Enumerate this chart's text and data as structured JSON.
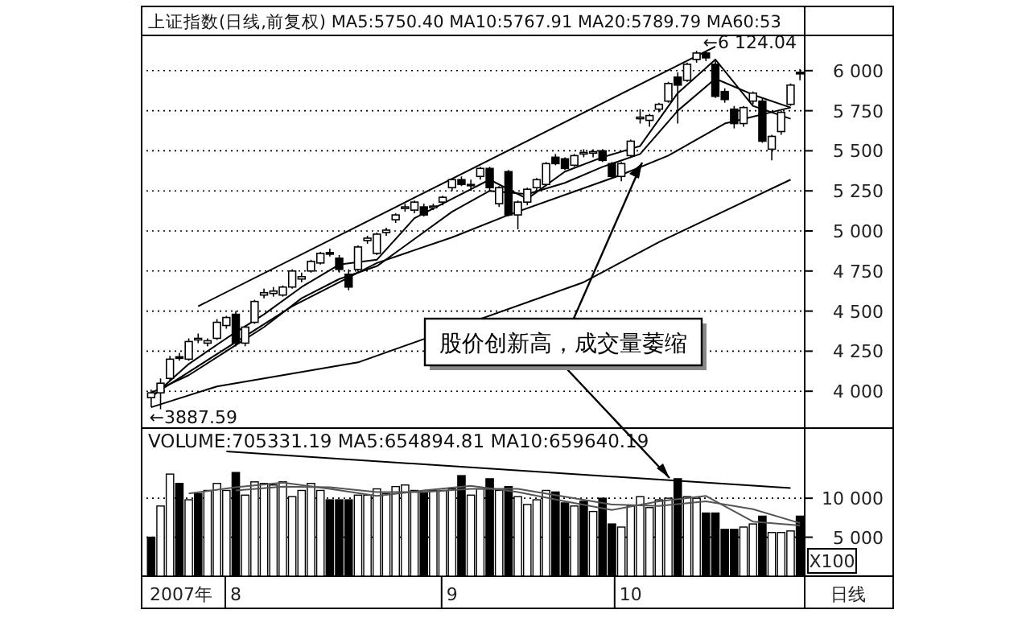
{
  "chart_data": [
    {
      "type": "candlestick",
      "title": "上证指数(日线,前复权) MA5:5750.40 MA10:5767.91 MA20:5789.79 MA60:53",
      "categories": [
        null,
        null,
        null,
        null,
        null,
        null,
        null,
        null,
        null,
        null,
        null,
        null,
        null,
        null,
        null,
        null,
        null,
        null,
        null,
        null,
        null,
        null,
        null,
        null,
        null,
        null,
        null,
        null,
        null,
        null,
        null,
        null,
        null,
        null,
        null,
        null,
        null,
        null,
        null,
        null,
        null,
        null,
        null,
        null,
        null,
        null,
        null,
        null,
        null,
        null,
        null,
        null,
        null,
        null,
        null,
        null,
        null,
        null,
        null,
        null,
        null,
        null,
        null,
        null,
        null,
        null,
        null,
        null,
        null,
        null
      ],
      "color": "#000000",
      "ohlc": [
        [
          3960,
          4010,
          3900,
          3990
        ],
        [
          3990,
          4080,
          3887.59,
          4050
        ],
        [
          4080,
          4220,
          4060,
          4200
        ],
        [
          4215,
          4240,
          4190,
          4205
        ],
        [
          4200,
          4330,
          4190,
          4310
        ],
        [
          4320,
          4360,
          4300,
          4330
        ],
        [
          4300,
          4330,
          4280,
          4315
        ],
        [
          4330,
          4450,
          4320,
          4430
        ],
        [
          4410,
          4470,
          4390,
          4460
        ],
        [
          4480,
          4500,
          4280,
          4300
        ],
        [
          4300,
          4410,
          4280,
          4400
        ],
        [
          4430,
          4570,
          4420,
          4560
        ],
        [
          4600,
          4640,
          4580,
          4615
        ],
        [
          4610,
          4650,
          4590,
          4625
        ],
        [
          4600,
          4660,
          4590,
          4650
        ],
        [
          4650,
          4760,
          4640,
          4750
        ],
        [
          4700,
          4740,
          4680,
          4715
        ],
        [
          4750,
          4820,
          4740,
          4810
        ],
        [
          4800,
          4870,
          4790,
          4860
        ],
        [
          4865,
          4890,
          4840,
          4855
        ],
        [
          4830,
          4850,
          4740,
          4760
        ],
        [
          4730,
          4760,
          4630,
          4650
        ],
        [
          4760,
          4910,
          4740,
          4900
        ],
        [
          4940,
          4970,
          4920,
          4955
        ],
        [
          4860,
          4990,
          4850,
          4980
        ],
        [
          4990,
          5020,
          4970,
          5005
        ],
        [
          5070,
          5110,
          5050,
          5100
        ],
        [
          5140,
          5170,
          5120,
          5150
        ],
        [
          5130,
          5190,
          5110,
          5180
        ],
        [
          5150,
          5170,
          5090,
          5100
        ],
        [
          5145,
          5170,
          5130,
          5155
        ],
        [
          5180,
          5220,
          5160,
          5210
        ],
        [
          5270,
          5330,
          5250,
          5320
        ],
        [
          5320,
          5340,
          5280,
          5290
        ],
        [
          5285,
          5320,
          5250,
          5290
        ],
        [
          5340,
          5400,
          5320,
          5390
        ],
        [
          5390,
          5400,
          5250,
          5270
        ],
        [
          5170,
          5280,
          5150,
          5270
        ],
        [
          5370,
          5380,
          5090,
          5100
        ],
        [
          5100,
          5190,
          5010,
          5180
        ],
        [
          5180,
          5270,
          5160,
          5260
        ],
        [
          5270,
          5330,
          5250,
          5320
        ],
        [
          5290,
          5430,
          5280,
          5420
        ],
        [
          5460,
          5480,
          5410,
          5420
        ],
        [
          5450,
          5460,
          5380,
          5390
        ],
        [
          5410,
          5480,
          5400,
          5470
        ],
        [
          5480,
          5510,
          5460,
          5490
        ],
        [
          5485,
          5510,
          5460,
          5495
        ],
        [
          5500,
          5510,
          5430,
          5440
        ],
        [
          5420,
          5430,
          5330,
          5340
        ],
        [
          5340,
          5430,
          5310,
          5420
        ],
        [
          5470,
          5570,
          5460,
          5560
        ],
        [
          5700,
          5760,
          5670,
          5710
        ],
        [
          5690,
          5730,
          5650,
          5720
        ],
        [
          5760,
          5800,
          5740,
          5790
        ],
        [
          5810,
          5930,
          5800,
          5920
        ],
        [
          5960,
          5990,
          5670,
          5910
        ],
        [
          5940,
          6050,
          5930,
          6040
        ],
        [
          6070,
          6124.04,
          6050,
          6110
        ],
        [
          6110,
          6120,
          6060,
          6080
        ],
        [
          6040,
          6060,
          5830,
          5840
        ],
        [
          5870,
          5890,
          5800,
          5820
        ],
        [
          5760,
          5780,
          5640,
          5670
        ],
        [
          5670,
          5780,
          5650,
          5770
        ],
        [
          5810,
          5870,
          5790,
          5860
        ],
        [
          5810,
          5830,
          5550,
          5560
        ],
        [
          5510,
          5600,
          5440,
          5590
        ],
        [
          5620,
          5750,
          5600,
          5740
        ],
        [
          5790,
          5920,
          5780,
          5910
        ],
        [
          5990,
          6010,
          5940,
          5980
        ]
      ],
      "series": [
        {
          "type": "line",
          "color": "#000000",
          "values": [
            3960,
            null,
            null,
            null,
            4170,
            null,
            null,
            null,
            4330,
            null,
            null,
            null,
            4480,
            null,
            null,
            null,
            4650,
            null,
            null,
            null,
            4790,
            null,
            null,
            null,
            4820,
            null,
            null,
            null,
            5080,
            null,
            null,
            null,
            5200,
            null,
            null,
            null,
            5320,
            null,
            null,
            null,
            5200,
            null,
            null,
            null,
            5370,
            null,
            null,
            null,
            5460,
            null,
            null,
            null,
            5530,
            null,
            null,
            null,
            5860,
            null,
            null,
            null,
            6070,
            null,
            null,
            null,
            5780,
            null,
            null,
            null,
            5700,
            null
          ]
        },
        {
          "type": "line",
          "color": "#000000",
          "values": [
            3990,
            null,
            null,
            null,
            4100,
            null,
            null,
            null,
            4250,
            null,
            null,
            null,
            4400,
            null,
            null,
            null,
            4580,
            null,
            null,
            null,
            4700,
            null,
            null,
            null,
            4780,
            null,
            null,
            null,
            4950,
            null,
            null,
            null,
            5120,
            null,
            null,
            null,
            5250,
            null,
            null,
            null,
            5230,
            null,
            null,
            null,
            5300,
            null,
            null,
            null,
            5400,
            null,
            null,
            null,
            5480,
            null,
            null,
            null,
            5750,
            null,
            null,
            null,
            5950,
            null,
            null,
            null,
            5850,
            null,
            null,
            null,
            5770,
            null
          ]
        },
        {
          "type": "line",
          "color": "#000000",
          "values": [
            3970,
            null,
            null,
            null,
            null,
            null,
            null,
            null,
            null,
            null,
            null,
            null,
            null,
            null,
            null,
            4530,
            null,
            null,
            null,
            null,
            null,
            null,
            null,
            null,
            4800,
            null,
            null,
            null,
            null,
            null,
            null,
            null,
            4960,
            null,
            null,
            null,
            null,
            null,
            5100,
            null,
            null,
            null,
            null,
            null,
            null,
            null,
            null,
            null,
            null,
            null,
            5350,
            null,
            null,
            null,
            null,
            5470,
            null,
            null,
            null,
            null,
            null,
            5670,
            null,
            null,
            null,
            null,
            null,
            null,
            5770,
            null
          ]
        },
        {
          "type": "line",
          "color": "#000000",
          "values": [
            3900,
            null,
            null,
            null,
            null,
            null,
            null,
            4030,
            null,
            null,
            null,
            null,
            null,
            null,
            null,
            null,
            null,
            null,
            null,
            null,
            null,
            null,
            4180,
            null,
            null,
            null,
            null,
            null,
            null,
            null,
            null,
            null,
            null,
            null,
            null,
            null,
            null,
            null,
            null,
            null,
            null,
            null,
            null,
            null,
            null,
            null,
            4680,
            null,
            null,
            null,
            null,
            null,
            null,
            null,
            4930,
            null,
            null,
            null,
            null,
            null,
            null,
            null,
            null,
            null,
            null,
            null,
            null,
            null,
            5320,
            null
          ]
        },
        {
          "type": "line",
          "color": "#000000",
          "values": [
            null,
            null,
            null,
            null,
            null,
            4530,
            null,
            null,
            null,
            null,
            null,
            null,
            null,
            null,
            null,
            null,
            null,
            null,
            null,
            null,
            null,
            null,
            null,
            null,
            null,
            null,
            null,
            null,
            null,
            null,
            null,
            null,
            null,
            null,
            null,
            null,
            null,
            null,
            null,
            null,
            null,
            null,
            null,
            null,
            null,
            null,
            null,
            null,
            null,
            null,
            null,
            null,
            null,
            null,
            null,
            null,
            null,
            null,
            null,
            null,
            6150,
            null,
            null,
            null,
            null,
            null,
            null,
            null,
            null,
            null
          ]
        }
      ],
      "ylim": [
        3770,
        6220
      ],
      "yticks": [
        {
          "value": 4000,
          "label": "4 000"
        },
        {
          "value": 4250,
          "label": "4 250"
        },
        {
          "value": 4500,
          "label": "4 500"
        },
        {
          "value": 4750,
          "label": "4 750"
        },
        {
          "value": 5000,
          "label": "5 000"
        },
        {
          "value": 5250,
          "label": "5 250"
        },
        {
          "value": 5500,
          "label": "5 500"
        },
        {
          "value": 5750,
          "label": "5 750"
        },
        {
          "value": 6000,
          "label": "6 000"
        }
      ],
      "grid": "y",
      "tick_labels": "y",
      "annotations": [
        "←6 124.04",
        "←3887.59",
        "股价创新高，成交量萎缩"
      ]
    },
    {
      "type": "bar",
      "title": "VOLUME:705331.19 MA5:654894.81 MA10:659640.19",
      "ylabel": "X100",
      "categories": [
        null,
        null,
        null,
        null,
        null,
        null,
        null,
        null,
        null,
        "8",
        null,
        null,
        null,
        null,
        null,
        null,
        null,
        null,
        null,
        null,
        null,
        null,
        null,
        null,
        null,
        null,
        null,
        null,
        null,
        null,
        null,
        null,
        "9",
        null,
        null,
        null,
        null,
        null,
        null,
        null,
        null,
        null,
        null,
        null,
        null,
        null,
        null,
        null,
        null,
        null,
        null,
        "10",
        null,
        null,
        null,
        null,
        null,
        null,
        null,
        null,
        null,
        null,
        null,
        null,
        null,
        null,
        null,
        null,
        null,
        null
      ],
      "series": [
        {
          "type": "bar",
          "values": [
            5000,
            9000,
            13100,
            11900,
            9800,
            10600,
            11000,
            11900,
            11000,
            13300,
            10400,
            12100,
            11900,
            11700,
            12100,
            10200,
            11000,
            11900,
            11000,
            9800,
            9800,
            9800,
            10400,
            10400,
            11200,
            10600,
            11500,
            11700,
            11000,
            10800,
            11000,
            11000,
            11200,
            12900,
            10400,
            11200,
            12500,
            11000,
            11500,
            10200,
            9200,
            9800,
            11000,
            10800,
            9400,
            9000,
            9600,
            8300,
            10000,
            6700,
            6300,
            9000,
            10200,
            8800,
            9800,
            10000,
            12500,
            10200,
            10000,
            8100,
            8100,
            6000,
            6000,
            6300,
            6700,
            7700,
            5600,
            5600,
            5800,
            7700
          ],
          "colors": [
            "#000000",
            "#ffffff",
            "#ffffff",
            "#000000",
            "#ffffff",
            "#000000",
            "#ffffff",
            "#ffffff",
            "#ffffff",
            "#000000",
            "#ffffff",
            "#ffffff",
            "#ffffff",
            "#ffffff",
            "#ffffff",
            "#ffffff",
            "#ffffff",
            "#ffffff",
            "#ffffff",
            "#000000",
            "#000000",
            "#000000",
            "#ffffff",
            "#ffffff",
            "#ffffff",
            "#ffffff",
            "#ffffff",
            "#ffffff",
            "#ffffff",
            "#000000",
            "#ffffff",
            "#ffffff",
            "#ffffff",
            "#000000",
            "#ffffff",
            "#ffffff",
            "#000000",
            "#ffffff",
            "#000000",
            "#ffffff",
            "#ffffff",
            "#ffffff",
            "#ffffff",
            "#000000",
            "#000000",
            "#ffffff",
            "#000000",
            "#ffffff",
            "#000000",
            "#000000",
            "#ffffff",
            "#ffffff",
            "#ffffff",
            "#ffffff",
            "#ffffff",
            "#ffffff",
            "#000000",
            "#ffffff",
            "#ffffff",
            "#000000",
            "#000000",
            "#000000",
            "#000000",
            "#ffffff",
            "#ffffff",
            "#000000",
            "#ffffff",
            "#ffffff",
            "#ffffff",
            "#000000"
          ]
        },
        {
          "type": "line",
          "color": "#555555",
          "values": [
            null,
            null,
            null,
            null,
            10600,
            null,
            null,
            null,
            null,
            11400,
            null,
            null,
            null,
            null,
            12000,
            null,
            null,
            null,
            null,
            11200,
            null,
            null,
            null,
            null,
            10300,
            null,
            null,
            null,
            null,
            11000,
            null,
            null,
            null,
            null,
            11600,
            null,
            null,
            null,
            null,
            10800,
            null,
            null,
            null,
            null,
            9600,
            null,
            null,
            null,
            null,
            8500,
            null,
            null,
            null,
            null,
            9600,
            null,
            null,
            null,
            null,
            10300,
            null,
            null,
            null,
            null,
            7000,
            null,
            null,
            null,
            null,
            6500
          ]
        },
        {
          "type": "line",
          "color": "#555555",
          "values": [
            null,
            null,
            null,
            null,
            null,
            null,
            null,
            null,
            null,
            11000,
            null,
            null,
            null,
            null,
            11500,
            null,
            null,
            null,
            null,
            11400,
            null,
            null,
            null,
            null,
            10800,
            null,
            null,
            null,
            null,
            10800,
            null,
            null,
            null,
            null,
            11200,
            null,
            null,
            null,
            null,
            11200,
            null,
            null,
            null,
            null,
            10200,
            null,
            null,
            null,
            null,
            9200,
            null,
            null,
            null,
            null,
            9000,
            null,
            null,
            null,
            null,
            9600,
            null,
            null,
            null,
            null,
            8600,
            null,
            null,
            null,
            null,
            6800
          ]
        },
        {
          "type": "line",
          "color": "#000000",
          "values": [
            null,
            null,
            null,
            null,
            null,
            null,
            null,
            null,
            16000,
            null,
            null,
            null,
            null,
            null,
            null,
            null,
            null,
            null,
            null,
            null,
            null,
            null,
            null,
            null,
            null,
            null,
            null,
            null,
            null,
            null,
            null,
            null,
            null,
            null,
            null,
            null,
            null,
            null,
            null,
            null,
            null,
            null,
            null,
            null,
            null,
            null,
            null,
            null,
            null,
            null,
            null,
            null,
            null,
            null,
            null,
            null,
            null,
            null,
            null,
            null,
            null,
            null,
            null,
            null,
            null,
            null,
            null,
            null,
            11300,
            null
          ]
        }
      ],
      "ylim": [
        0,
        19000
      ],
      "yticks": [
        {
          "value": 5000,
          "label": "5 000"
        },
        {
          "value": 10000,
          "label": "10 000"
        }
      ],
      "grid": "y",
      "annotations": [
        "日线",
        "2007年"
      ]
    }
  ]
}
